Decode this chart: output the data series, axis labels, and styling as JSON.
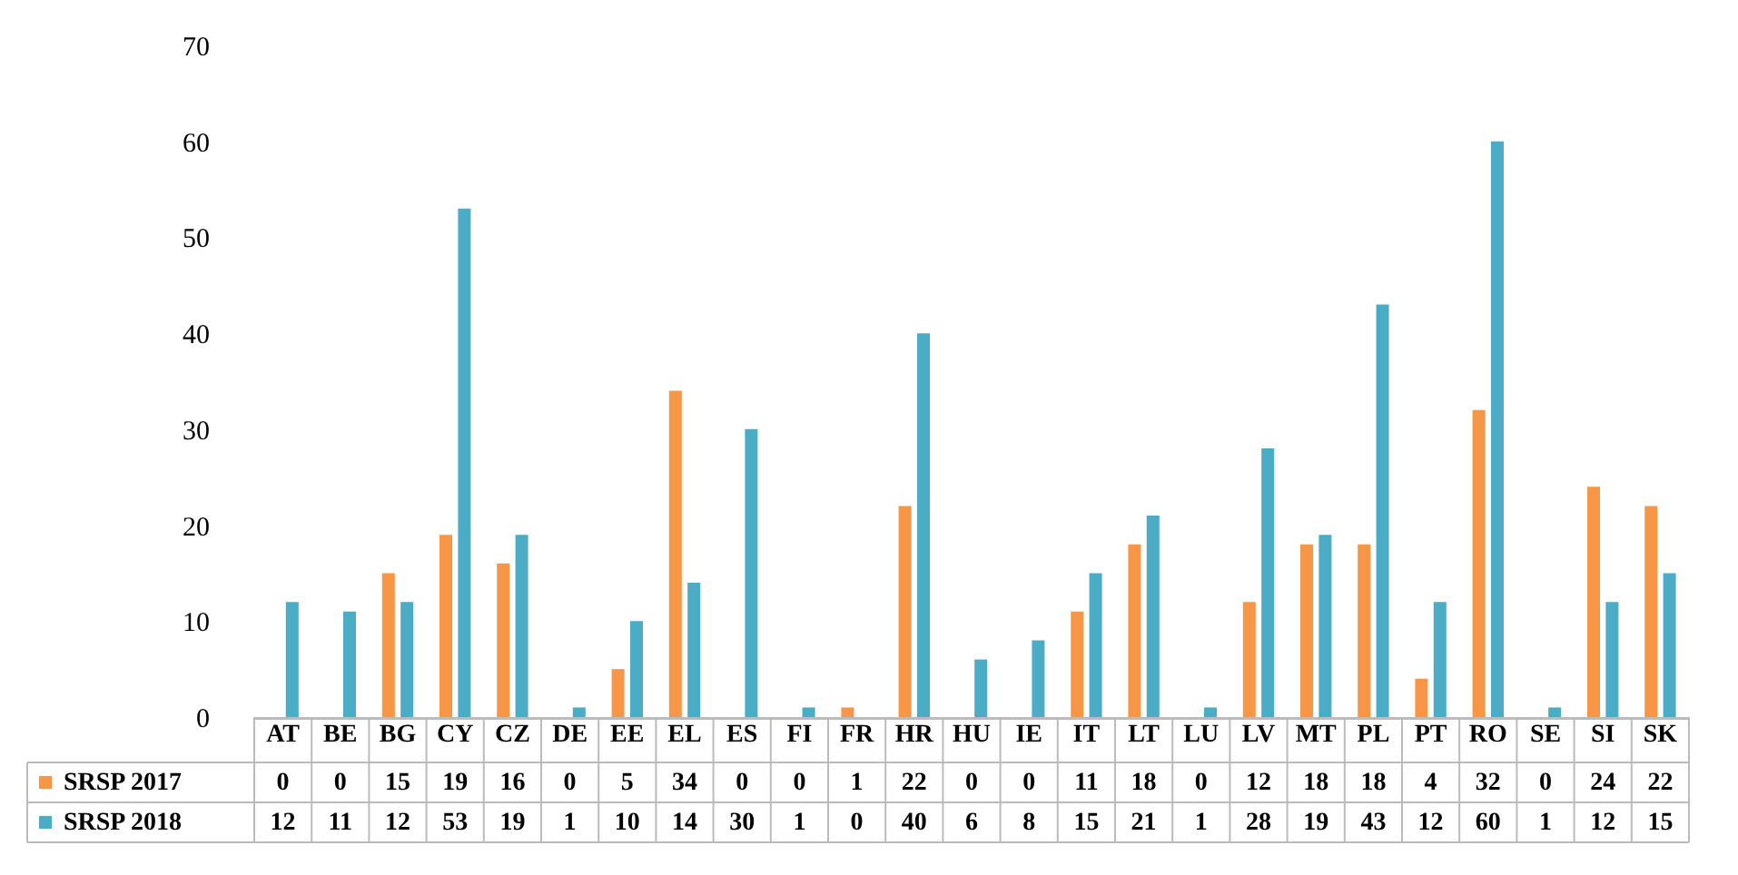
{
  "chart_data": {
    "type": "bar",
    "categories": [
      "AT",
      "BE",
      "BG",
      "CY",
      "CZ",
      "DE",
      "EE",
      "EL",
      "ES",
      "FI",
      "FR",
      "HR",
      "HU",
      "IE",
      "IT",
      "LT",
      "LU",
      "LV",
      "MT",
      "PL",
      "PT",
      "RO",
      "SE",
      "SI",
      "SK"
    ],
    "series": [
      {
        "name": "SRSP 2017",
        "color": "#f79646",
        "values": [
          0,
          0,
          15,
          19,
          16,
          0,
          5,
          34,
          0,
          0,
          1,
          22,
          0,
          0,
          11,
          18,
          0,
          12,
          18,
          18,
          4,
          32,
          0,
          24,
          22
        ]
      },
      {
        "name": "SRSP 2018",
        "color": "#4bacc6",
        "values": [
          12,
          11,
          12,
          53,
          19,
          1,
          10,
          14,
          30,
          1,
          0,
          40,
          6,
          8,
          15,
          21,
          1,
          28,
          19,
          43,
          12,
          60,
          1,
          12,
          15
        ]
      }
    ],
    "ylim": [
      0,
      70
    ],
    "yticks": [
      0,
      10,
      20,
      30,
      40,
      50,
      60,
      70
    ],
    "grid": false,
    "legend": "bottom",
    "data_labels": true
  }
}
